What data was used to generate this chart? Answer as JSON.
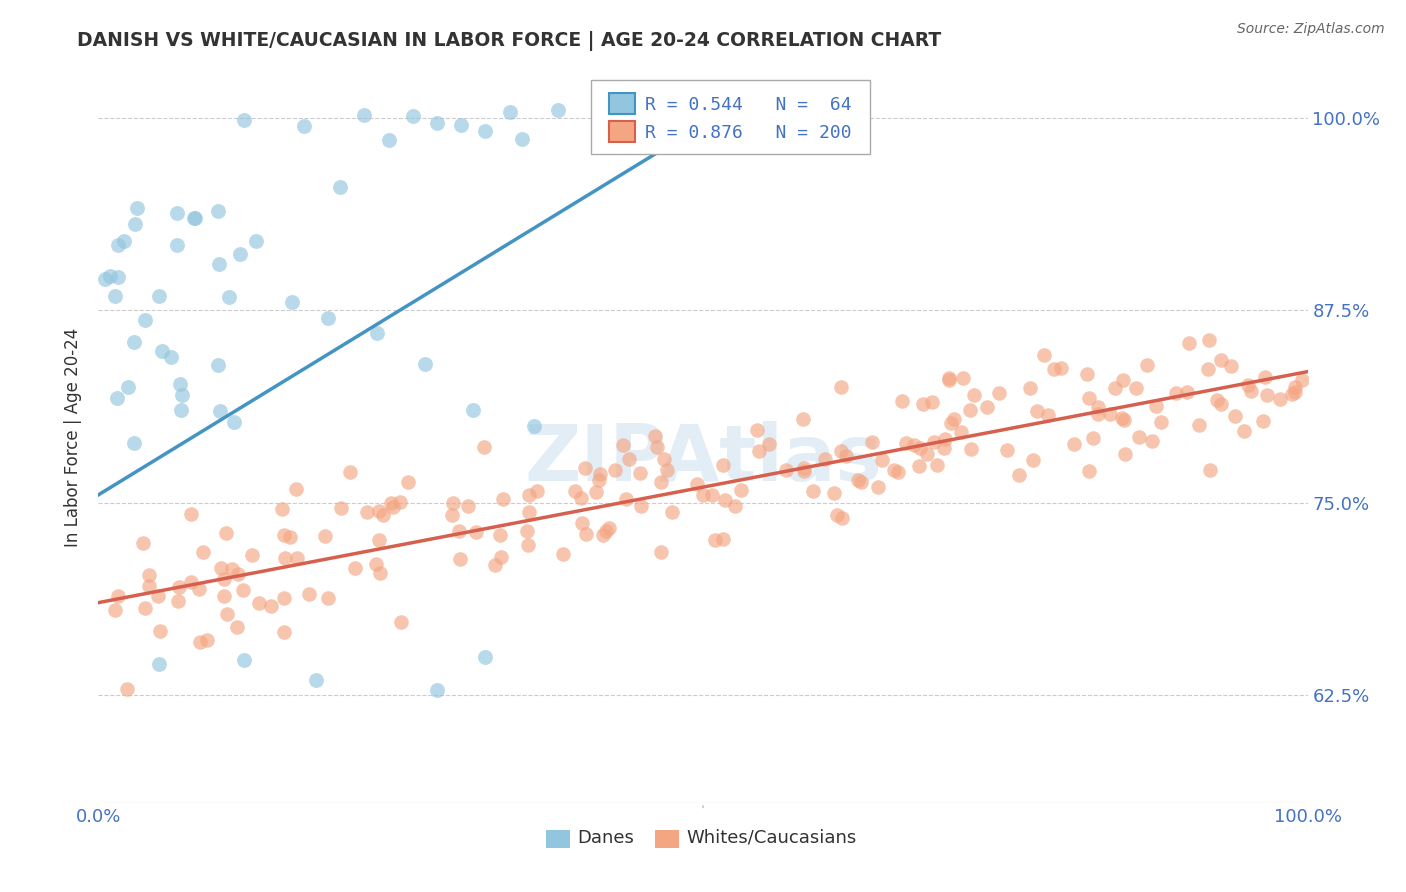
{
  "title": "DANISH VS WHITE/CAUCASIAN IN LABOR FORCE | AGE 20-24 CORRELATION CHART",
  "source": "Source: ZipAtlas.com",
  "ylabel": "In Labor Force | Age 20-24",
  "xlim": [
    0.0,
    1.0
  ],
  "ylim": [
    0.555,
    1.03
  ],
  "yticks": [
    0.625,
    0.75,
    0.875,
    1.0
  ],
  "ytick_labels_right": [
    "62.5%",
    "75.0%",
    "87.5%",
    "100.0%"
  ],
  "xtick_labels": [
    "0.0%",
    "100.0%"
  ],
  "xtick_positions": [
    0.0,
    1.0
  ],
  "blue_R": 0.544,
  "blue_N": 64,
  "pink_R": 0.876,
  "pink_N": 200,
  "blue_color": "#92c5de",
  "pink_color": "#f4a582",
  "blue_line_color": "#4393c3",
  "pink_line_color": "#d6604d",
  "legend_label_blue": "Danes",
  "legend_label_pink": "Whites/Caucasians",
  "background_color": "#ffffff",
  "grid_color": "#cccccc",
  "title_color": "#333333",
  "tick_color": "#4472c4",
  "seed": 99,
  "blue_line_x0": 0.0,
  "blue_line_y0": 0.755,
  "blue_line_x1": 0.52,
  "blue_line_y1": 1.005,
  "pink_line_x0": 0.0,
  "pink_line_y0": 0.685,
  "pink_line_x1": 1.0,
  "pink_line_y1": 0.835
}
